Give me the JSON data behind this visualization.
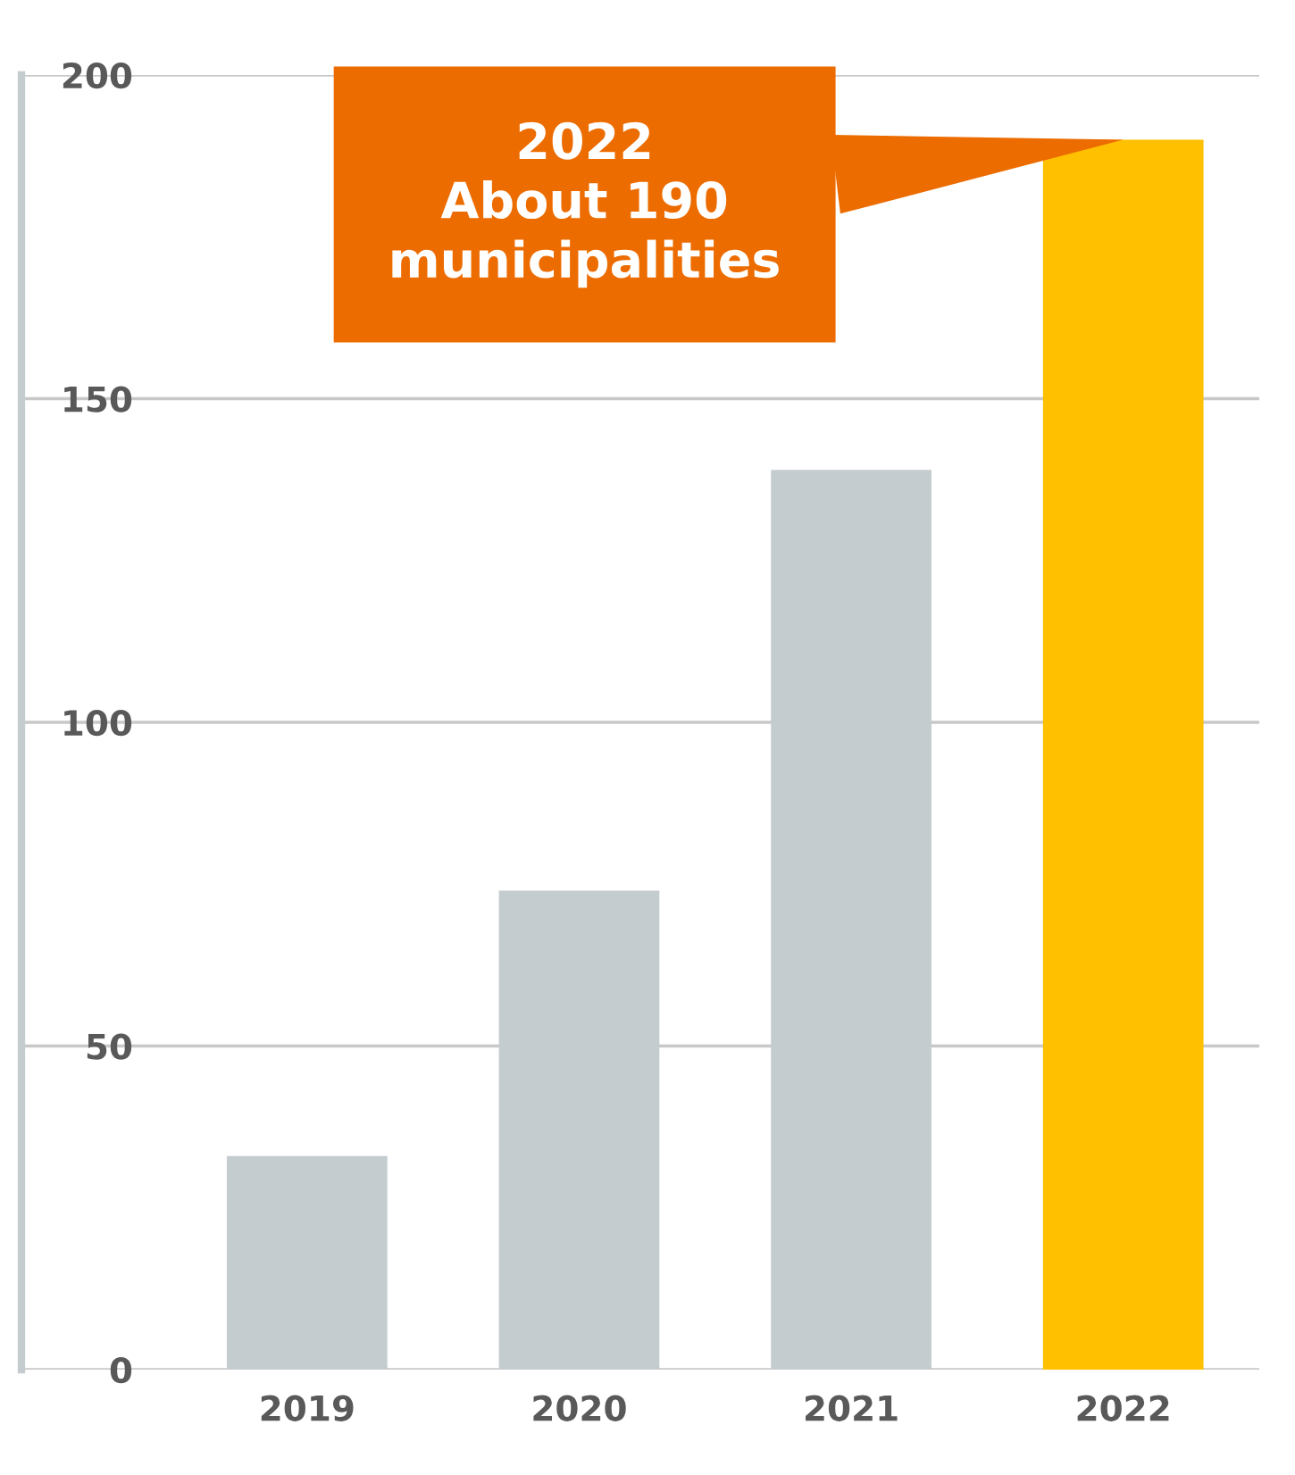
{
  "chart_data": {
    "type": "bar",
    "categories": [
      "2019",
      "2020",
      "2021",
      "2022"
    ],
    "values": [
      33,
      74,
      139,
      190
    ],
    "colors": [
      "#c5ccd0",
      "#c5ccd0",
      "#c5ccd0",
      "#ffc000"
    ],
    "ylim": [
      0,
      200
    ],
    "yticks": [
      0,
      50,
      100,
      150,
      200
    ],
    "grid": "y",
    "annotations": [
      {
        "text": "2022\nAbout 190\nmunicipalities",
        "x": "2022",
        "y": 190
      }
    ]
  }
}
